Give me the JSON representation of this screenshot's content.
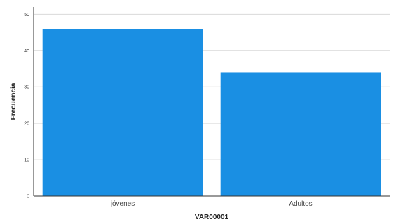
{
  "chart_data": {
    "type": "bar",
    "categories": [
      "jóvenes",
      "Adultos"
    ],
    "values": [
      46,
      34
    ],
    "xlabel": "VAR00001",
    "ylabel": "Frecuencia",
    "ylim": [
      0,
      52
    ],
    "yticks": [
      0,
      10,
      20,
      30,
      40,
      50
    ],
    "grid": true,
    "legend": "none",
    "bar_color": "#1a8fe3"
  }
}
